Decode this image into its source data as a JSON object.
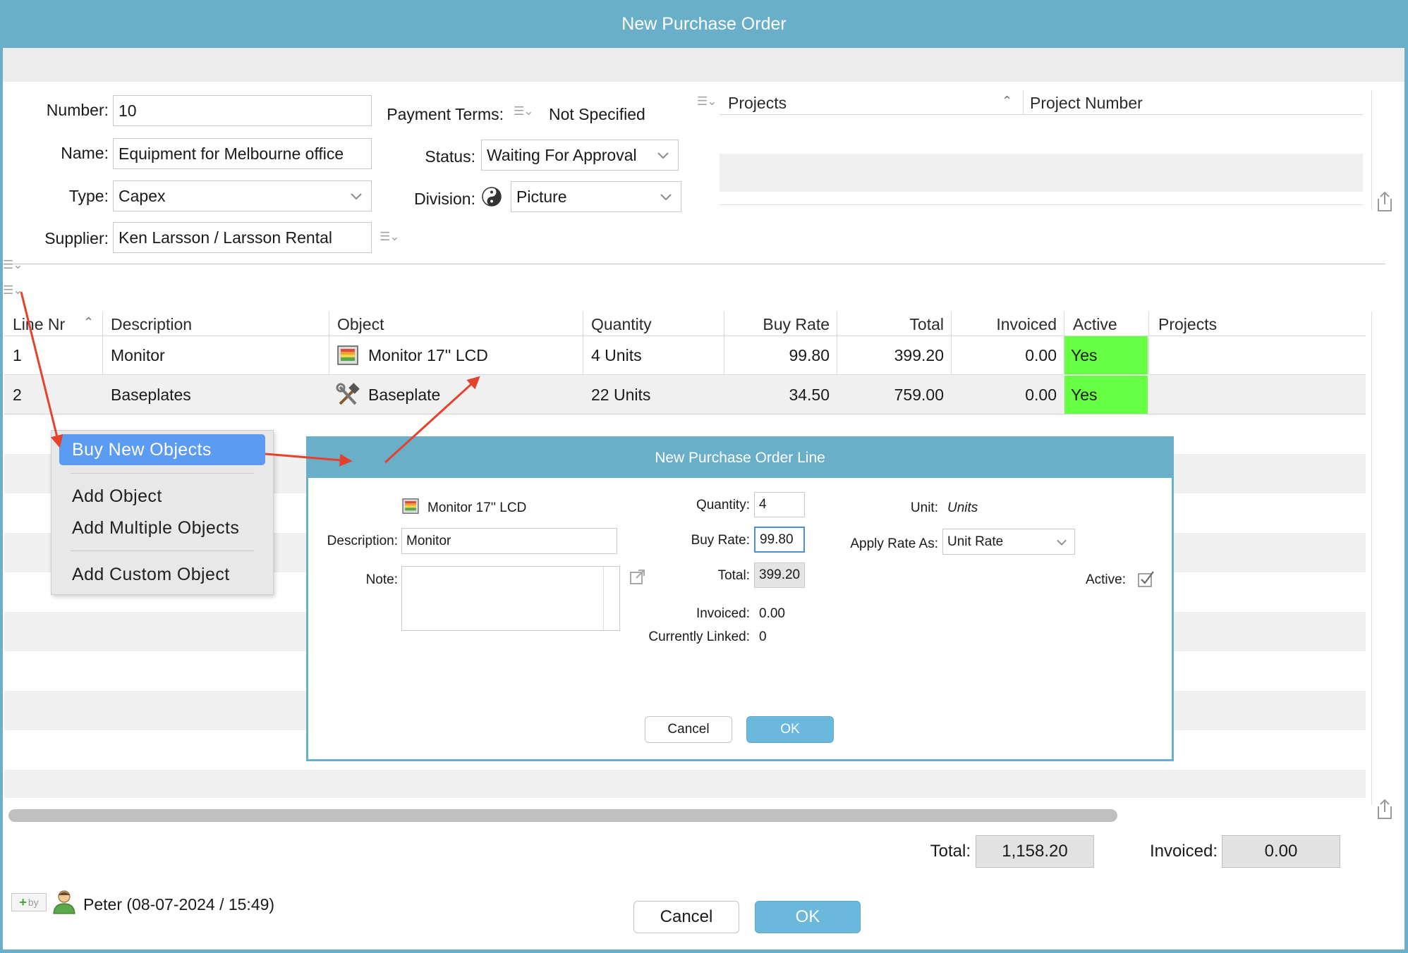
{
  "window": {
    "title": "New Purchase Order"
  },
  "form": {
    "number_label": "Number:",
    "number_value": "10",
    "name_label": "Name:",
    "name_value": "Equipment for Melbourne office",
    "type_label": "Type:",
    "type_value": "Capex",
    "supplier_label": "Supplier:",
    "supplier_value": "Ken Larsson / Larsson Rental",
    "payment_terms_label": "Payment Terms:",
    "payment_terms_value": "Not Specified",
    "status_label": "Status:",
    "status_value": "Waiting For Approval",
    "division_label": "Division:",
    "division_value": "Picture"
  },
  "projects_table": {
    "col_projects": "Projects",
    "col_project_number": "Project Number"
  },
  "lines_table": {
    "headers": [
      "Line Nr",
      "Description",
      "Object",
      "Quantity",
      "Buy Rate",
      "Total",
      "Invoiced",
      "Active",
      "Projects"
    ],
    "rows": [
      {
        "line_nr": "1",
        "description": "Monitor",
        "object": "Monitor 17'' LCD",
        "object_icon": "monitor-icon",
        "quantity": "4 Units",
        "buy_rate": "99.80",
        "total": "399.20",
        "invoiced": "0.00",
        "active": "Yes",
        "projects": ""
      },
      {
        "line_nr": "2",
        "description": "Baseplates",
        "object": "Baseplate",
        "object_icon": "tools-icon",
        "quantity": "22 Units",
        "buy_rate": "34.50",
        "total": "759.00",
        "invoiced": "0.00",
        "active": "Yes",
        "projects": ""
      }
    ],
    "active_color": "#66ff44"
  },
  "context_menu": {
    "items": [
      "Buy New Objects",
      "Add Object",
      "Add Multiple Objects",
      "Add Custom Object"
    ],
    "highlight_color": "#5b9cf2"
  },
  "dialog": {
    "title": "New Purchase Order Line",
    "object_name": "Monitor 17'' LCD",
    "description_label": "Description:",
    "description_value": "Monitor",
    "note_label": "Note:",
    "quantity_label": "Quantity:",
    "quantity_value": "4",
    "buy_rate_label": "Buy Rate:",
    "buy_rate_value": "99.80",
    "total_label": "Total:",
    "total_value": "399.20",
    "invoiced_label": "Invoiced:",
    "invoiced_value": "0.00",
    "linked_label": "Currently Linked:",
    "linked_value": "0",
    "unit_label": "Unit:",
    "unit_value": "Units",
    "apply_rate_label": "Apply Rate As:",
    "apply_rate_value": "Unit Rate",
    "active_label": "Active:",
    "cancel_label": "Cancel",
    "ok_label": "OK"
  },
  "footer": {
    "total_label": "Total:",
    "total_value": "1,158.20",
    "invoiced_label": "Invoiced:",
    "invoiced_value": "0.00",
    "created_by": "Peter (08-07-2024 / 15:49)",
    "by_badge": "by",
    "cancel_label": "Cancel",
    "ok_label": "OK"
  },
  "colors": {
    "title_bar": "#6aafca",
    "ok_button": "#6ab8dc",
    "arrow": "#e5412b"
  }
}
